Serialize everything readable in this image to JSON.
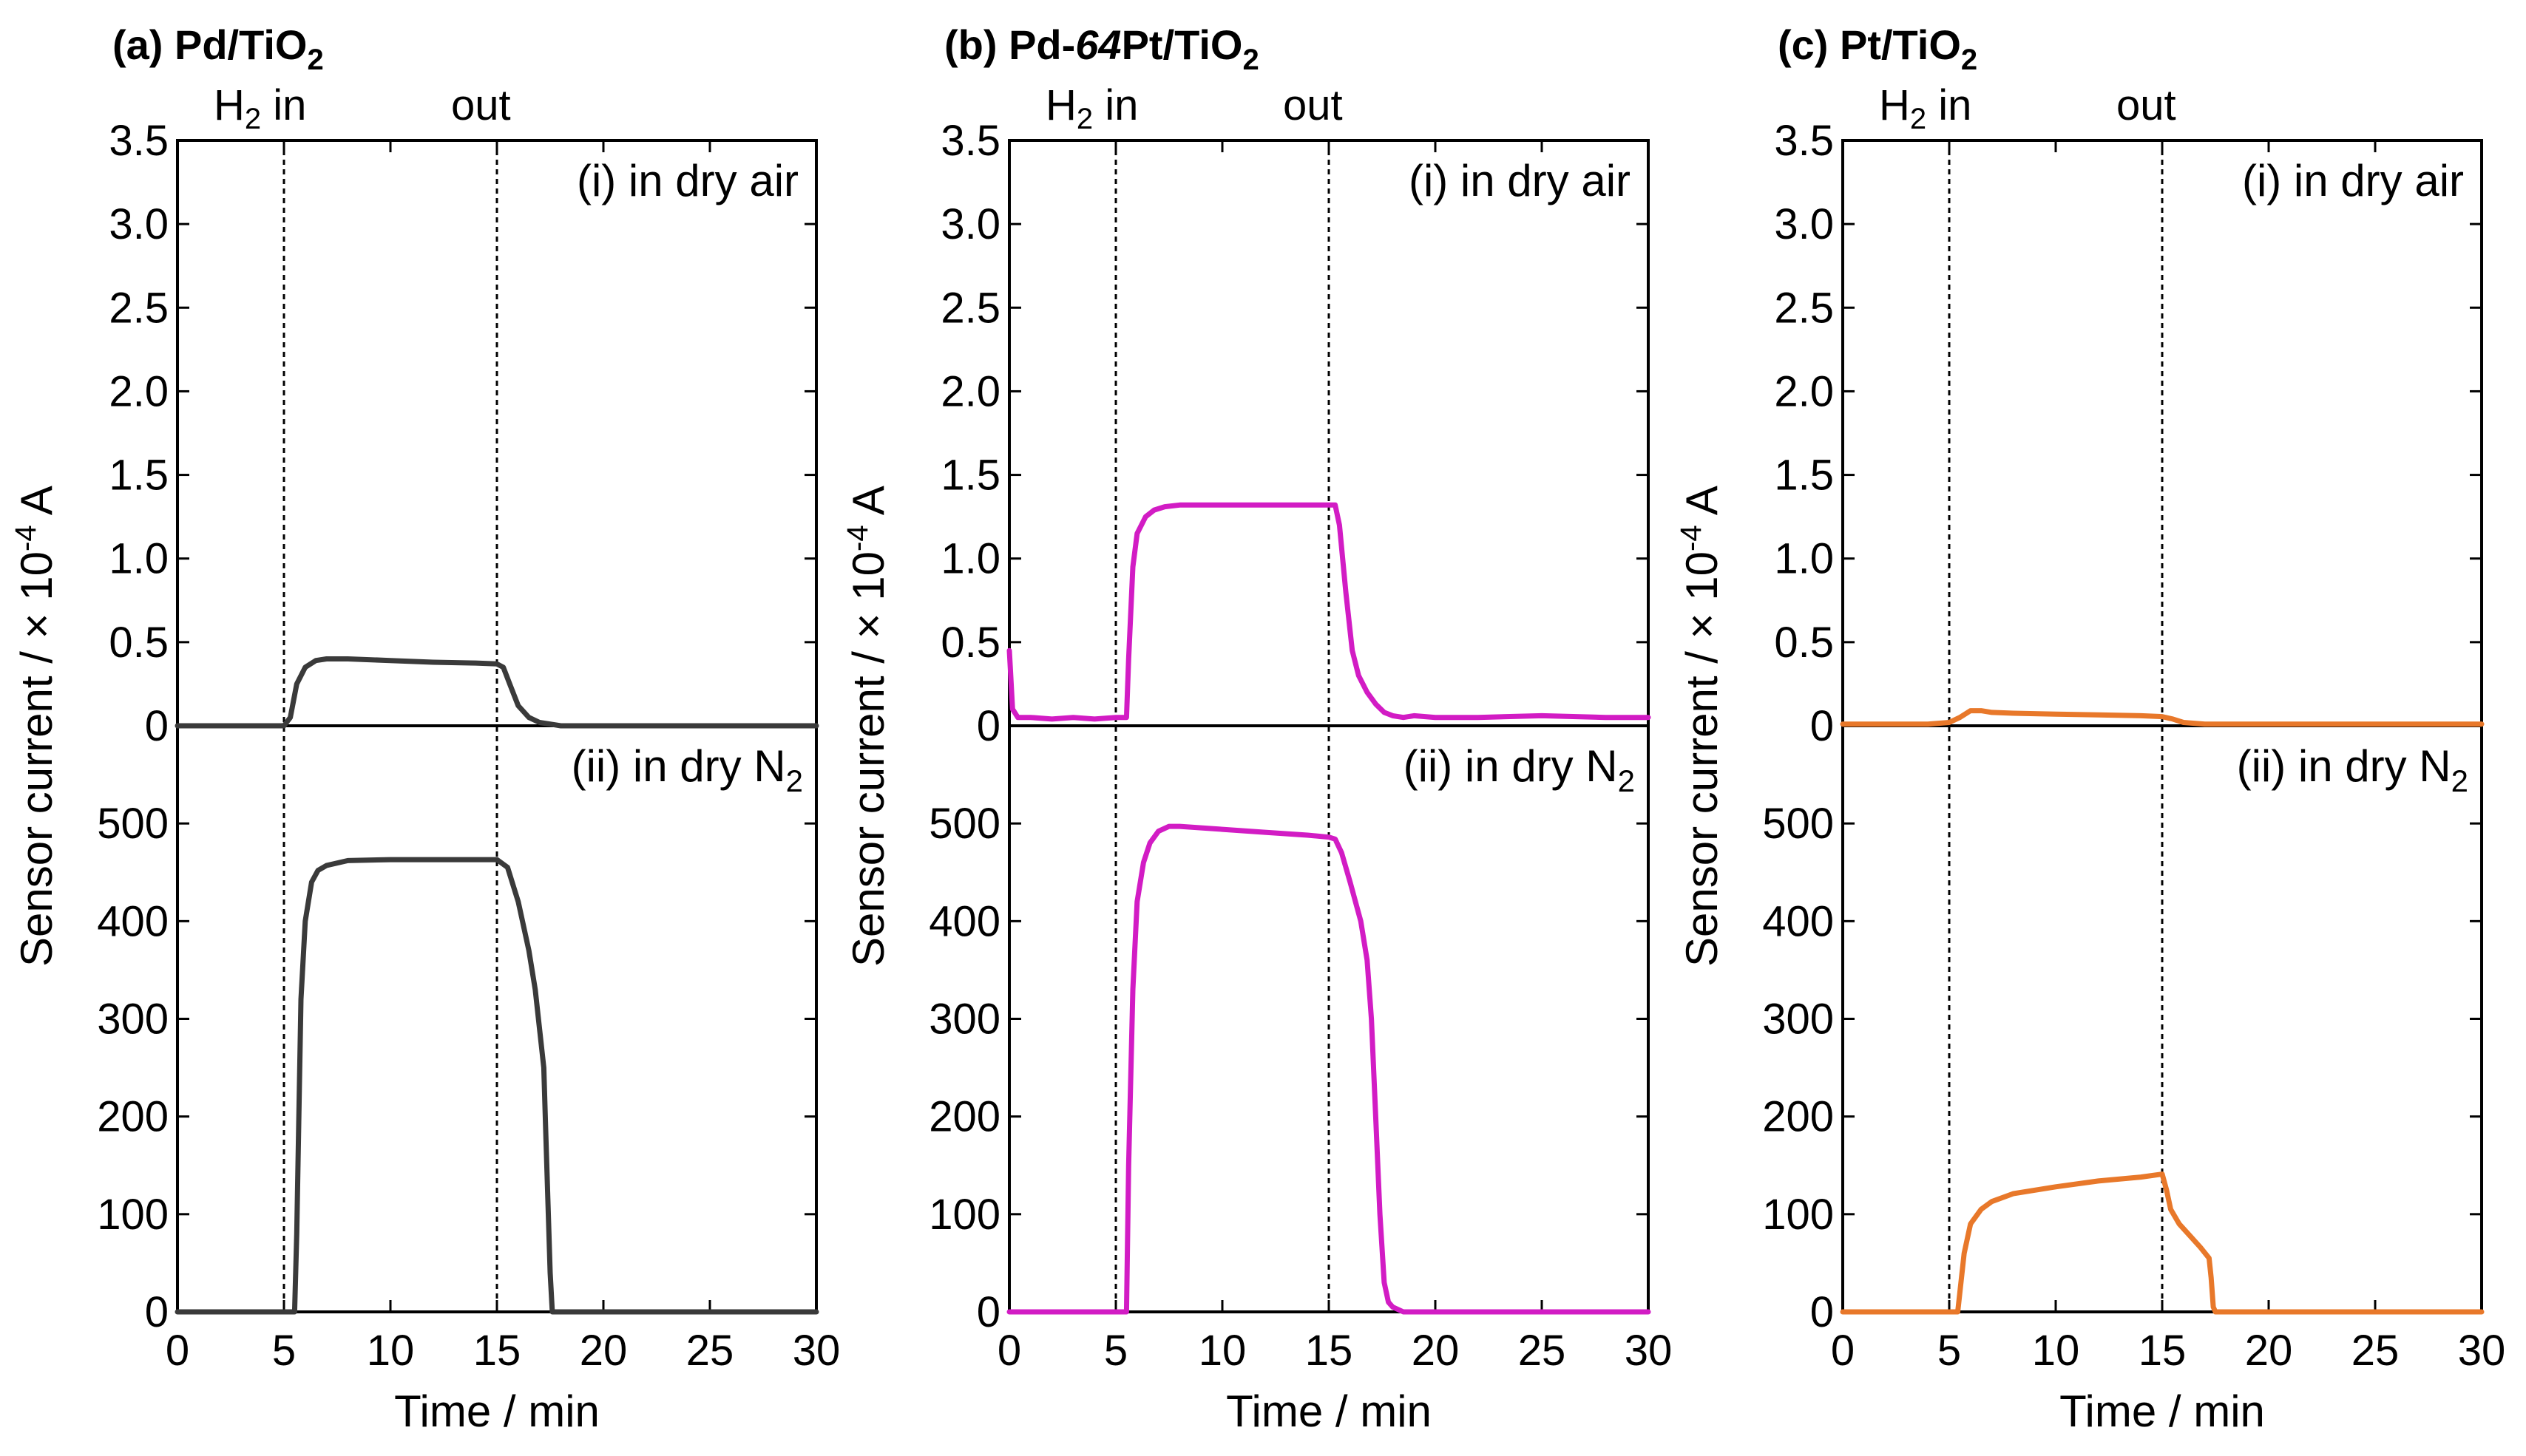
{
  "figure": {
    "ytitle_main": "Sensor current / × 10",
    "ytitle_exp": "-4",
    "ytitle_unit": " A"
  },
  "chart_data": [
    {
      "id": "a",
      "type": "line",
      "title": {
        "prefix": "(a) Pd/TiO",
        "italic": "",
        "middle": "",
        "sub": "2"
      },
      "color": "#3a3a3a",
      "xlabel": "Time / min",
      "xlim": [
        0,
        30
      ],
      "xticks": [
        "0",
        "5",
        "10",
        "15",
        "20",
        "25",
        "30"
      ],
      "h2_markers": {
        "in_label": "H",
        "in_sub": "2",
        "in_suffix": " in",
        "in_time": 5,
        "out_label": "out",
        "out_time": 15
      },
      "top": {
        "label": "(i) in dry air",
        "label_sub": "",
        "ylim": [
          0,
          3.5
        ],
        "yticks": [
          "3.5",
          "3.0",
          "2.5",
          "2.0",
          "1.5",
          "1.0",
          "0.5",
          "0"
        ],
        "x": [
          0,
          5.0,
          5.3,
          5.6,
          6.0,
          6.5,
          7.0,
          7.5,
          8,
          10,
          12,
          14,
          15.0,
          15.3,
          15.6,
          16.0,
          16.5,
          17.0,
          17.5,
          18,
          20,
          25,
          30
        ],
        "y": [
          0,
          0,
          0.05,
          0.25,
          0.35,
          0.39,
          0.4,
          0.4,
          0.4,
          0.39,
          0.38,
          0.375,
          0.37,
          0.35,
          0.25,
          0.12,
          0.05,
          0.02,
          0.01,
          0,
          0,
          0,
          0
        ]
      },
      "bottom": {
        "label": "(ii) in dry N",
        "label_sub": "2",
        "ylim": [
          0,
          600
        ],
        "yticks": [
          "500",
          "400",
          "300",
          "200",
          "100",
          "0"
        ],
        "x": [
          0,
          5.5,
          5.6,
          5.8,
          6.0,
          6.3,
          6.6,
          7.0,
          8,
          10,
          12,
          14,
          15.0,
          15.5,
          16.0,
          16.5,
          16.8,
          17.0,
          17.2,
          17.3,
          17.4,
          17.5,
          17.6,
          18,
          20,
          25,
          30
        ],
        "y": [
          0,
          0,
          80,
          320,
          400,
          440,
          452,
          457,
          462,
          463,
          463,
          463,
          463,
          455,
          420,
          370,
          330,
          290,
          250,
          180,
          110,
          40,
          0,
          0,
          0,
          0,
          0
        ]
      }
    },
    {
      "id": "b",
      "type": "line",
      "title": {
        "prefix": "(b) Pd-",
        "italic": "64",
        "middle": "Pt/TiO",
        "sub": "2"
      },
      "color": "#d21cc4",
      "xlabel": "Time / min",
      "xlim": [
        0,
        30
      ],
      "xticks": [
        "0",
        "5",
        "10",
        "15",
        "20",
        "25",
        "30"
      ],
      "h2_markers": {
        "in_label": "H",
        "in_sub": "2",
        "in_suffix": " in",
        "in_time": 5,
        "out_label": "out",
        "out_time": 15
      },
      "top": {
        "label": "(i) in dry air",
        "label_sub": "",
        "ylim": [
          0,
          3.5
        ],
        "yticks": [
          "3.5",
          "3.0",
          "2.5",
          "2.0",
          "1.5",
          "1.0",
          "0.5",
          "0"
        ],
        "x": [
          0,
          0.15,
          0.4,
          1,
          2,
          3,
          4,
          5,
          5.5,
          5.6,
          5.8,
          6.0,
          6.4,
          6.8,
          7.3,
          8,
          10,
          12,
          14,
          15.3,
          15.5,
          15.8,
          16.1,
          16.4,
          16.8,
          17.2,
          17.6,
          18.0,
          18.5,
          19,
          20,
          22,
          25,
          28,
          30
        ],
        "y": [
          0.45,
          0.1,
          0.05,
          0.05,
          0.04,
          0.05,
          0.04,
          0.05,
          0.05,
          0.4,
          0.95,
          1.15,
          1.25,
          1.29,
          1.31,
          1.32,
          1.32,
          1.32,
          1.32,
          1.32,
          1.2,
          0.8,
          0.45,
          0.3,
          0.2,
          0.13,
          0.08,
          0.06,
          0.05,
          0.06,
          0.05,
          0.05,
          0.06,
          0.05,
          0.05
        ]
      },
      "bottom": {
        "label": "(ii) in dry N",
        "label_sub": "2",
        "ylim": [
          0,
          600
        ],
        "yticks": [
          "500",
          "400",
          "300",
          "200",
          "100",
          "0"
        ],
        "x": [
          0,
          5.3,
          5.5,
          5.6,
          5.8,
          6.0,
          6.3,
          6.6,
          7.0,
          7.5,
          8,
          10,
          12,
          14,
          15.0,
          15.3,
          15.6,
          16.0,
          16.5,
          16.8,
          17.0,
          17.2,
          17.4,
          17.6,
          17.8,
          18.0,
          18.5,
          20,
          25,
          30
        ],
        "y": [
          0,
          0,
          0,
          150,
          330,
          420,
          460,
          480,
          492,
          497,
          497,
          494,
          491,
          488,
          486,
          484,
          470,
          440,
          400,
          360,
          300,
          200,
          100,
          30,
          10,
          5,
          0,
          0,
          0,
          0
        ]
      }
    },
    {
      "id": "c",
      "type": "line",
      "title": {
        "prefix": "(c) Pt/TiO",
        "italic": "",
        "middle": "",
        "sub": "2"
      },
      "color": "#e8782a",
      "xlabel": "Time / min",
      "xlim": [
        0,
        30
      ],
      "xticks": [
        "0",
        "5",
        "10",
        "15",
        "20",
        "25",
        "30"
      ],
      "h2_markers": {
        "in_label": "H",
        "in_sub": "2",
        "in_suffix": " in",
        "in_time": 5,
        "out_label": "out",
        "out_time": 15
      },
      "top": {
        "label": "(i) in dry air",
        "label_sub": "",
        "ylim": [
          0,
          3.5
        ],
        "yticks": [
          "3.5",
          "3.0",
          "2.5",
          "2.0",
          "1.5",
          "1.0",
          "0.5",
          "0"
        ],
        "x": [
          0,
          4,
          5.0,
          5.5,
          6.0,
          6.5,
          7.0,
          8,
          10,
          12,
          14,
          15.0,
          15.5,
          16,
          17,
          18,
          20,
          25,
          30
        ],
        "y": [
          0.01,
          0.01,
          0.02,
          0.05,
          0.09,
          0.09,
          0.08,
          0.075,
          0.07,
          0.065,
          0.06,
          0.055,
          0.04,
          0.02,
          0.01,
          0.01,
          0.01,
          0.01,
          0.01
        ]
      },
      "bottom": {
        "label": "(ii) in dry N",
        "label_sub": "2",
        "ylim": [
          0,
          600
        ],
        "yticks": [
          "500",
          "400",
          "300",
          "200",
          "100",
          "0"
        ],
        "x": [
          0,
          5.0,
          5.4,
          5.5,
          5.7,
          6.0,
          6.5,
          7.0,
          8,
          10,
          12,
          14,
          15.0,
          15.2,
          15.4,
          15.8,
          16.3,
          16.8,
          17.2,
          17.3,
          17.4,
          17.5,
          18,
          20,
          25,
          30
        ],
        "y": [
          0,
          0,
          0,
          20,
          60,
          90,
          105,
          113,
          121,
          128,
          134,
          138,
          141,
          125,
          105,
          90,
          78,
          66,
          55,
          35,
          5,
          0,
          0,
          0,
          0,
          0
        ]
      }
    }
  ]
}
